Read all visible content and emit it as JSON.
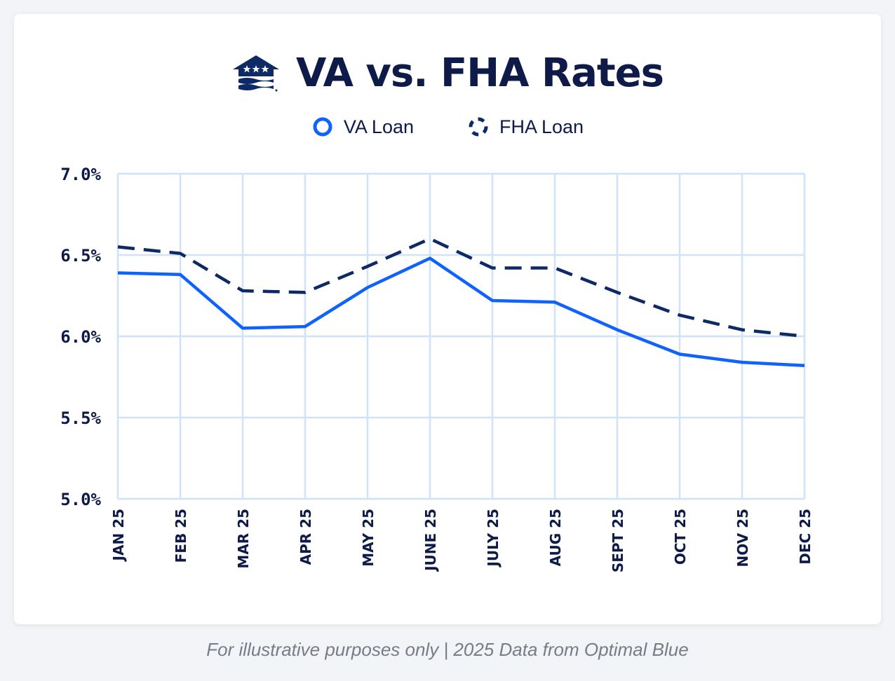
{
  "colors": {
    "va": "#0f62fe",
    "fha": "#0e2a66",
    "grid": "#cfe2fb",
    "text": "#0e1b48"
  },
  "logo_icon": "house-flag-icon",
  "footnote": "For illustrative purposes only | 2025 Data from Optimal Blue",
  "chart_data": {
    "type": "line",
    "title": "VA vs. FHA Rates",
    "categories": [
      "JAN 25",
      "FEB 25",
      "MAR 25",
      "APR 25",
      "MAY 25",
      "JUNE 25",
      "JULY 25",
      "AUG 25",
      "SEPT 25",
      "OCT 25",
      "NOV 25",
      "DEC 25"
    ],
    "ylim": [
      5.0,
      7.0
    ],
    "yticks": [
      5.0,
      5.5,
      6.0,
      6.5,
      7.0
    ],
    "ytick_labels": [
      "5.0%",
      "5.5%",
      "6.0%",
      "6.5%",
      "7.0%"
    ],
    "grid": true,
    "legend_position": "top-center",
    "series": [
      {
        "name": "VA Loan",
        "style": "solid",
        "values": [
          6.39,
          6.38,
          6.05,
          6.06,
          6.3,
          6.48,
          6.22,
          6.21,
          6.04,
          5.89,
          5.84,
          5.82
        ]
      },
      {
        "name": "FHA Loan",
        "style": "dashed",
        "values": [
          6.55,
          6.51,
          6.28,
          6.27,
          6.43,
          6.6,
          6.42,
          6.42,
          6.27,
          6.13,
          6.04,
          6.0
        ]
      }
    ]
  }
}
